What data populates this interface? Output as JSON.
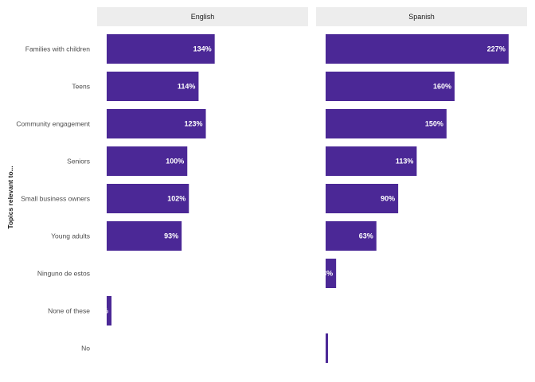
{
  "chart_data": {
    "type": "bar",
    "orientation": "horizontal",
    "ylabel": "Topics relevant to...",
    "categories": [
      "Families with children",
      "Teens",
      "Community engagement",
      "Seniors",
      "Small business owners",
      "Young adults",
      "Ninguno de estos",
      "None of these",
      "No"
    ],
    "panels": [
      {
        "name": "English",
        "values": [
          134,
          114,
          123,
          100,
          102,
          93,
          null,
          6,
          null
        ],
        "labels": [
          "134%",
          "114%",
          "123%",
          "100%",
          "102%",
          "93%",
          "",
          "6%",
          ""
        ]
      },
      {
        "name": "Spanish",
        "values": [
          227,
          160,
          150,
          113,
          90,
          63,
          13,
          null,
          3
        ],
        "labels": [
          "227%",
          "160%",
          "150%",
          "113%",
          "90%",
          "63%",
          "13%",
          "",
          "3%"
        ]
      }
    ],
    "xlim": [
      0,
      240
    ],
    "bar_color": "#4b2896",
    "strip_color": "#ededed",
    "grid": false,
    "legend": "none"
  }
}
